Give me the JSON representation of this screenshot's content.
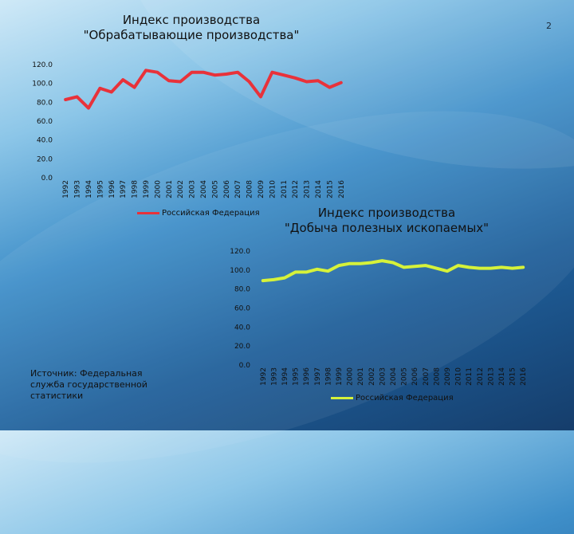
{
  "slide": {
    "number": "2"
  },
  "source": {
    "text": "Источник: Федеральная служба государственной статистики"
  },
  "colors": {
    "manufacturing": "#e8323a",
    "mining": "#d6f23a"
  },
  "chart_data": [
    {
      "type": "line",
      "title": "Индекс производства \"Обрабатывающие производства\"",
      "title_line1": "Индекс производства",
      "title_line2": "\"Обрабатывающие производства\"",
      "x": [
        "1992",
        "1993",
        "1994",
        "1995",
        "1996",
        "1997",
        "1998",
        "1999",
        "2000",
        "2001",
        "2002",
        "2003",
        "2004",
        "2005",
        "2006",
        "2007",
        "2008",
        "2009",
        "2010",
        "2011",
        "2012",
        "2013",
        "2014",
        "2015",
        "2016"
      ],
      "series": [
        {
          "name": "Российская Федерация",
          "values": [
            82,
            85,
            73,
            94,
            90,
            103,
            95,
            113,
            111,
            102,
            101,
            111,
            111,
            108,
            109,
            111,
            101,
            85,
            111,
            108,
            105,
            101,
            102,
            95,
            100
          ]
        }
      ],
      "y_ticks": [
        "0.0",
        "20.0",
        "40.0",
        "60.0",
        "80.0",
        "100.0",
        "120.0"
      ],
      "ylim": [
        0,
        120
      ],
      "legend_position": "bottom"
    },
    {
      "type": "line",
      "title": "Индекс производства \"Добыча полезных ископаемых\"",
      "title_line1": "Индекс производства",
      "title_line2": "\"Добыча полезных ископаемых\"",
      "x": [
        "1992",
        "1993",
        "1994",
        "1995",
        "1996",
        "1997",
        "1998",
        "1999",
        "2000",
        "2001",
        "2002",
        "2003",
        "2004",
        "2005",
        "2006",
        "2007",
        "2008",
        "2009",
        "2010",
        "2011",
        "2012",
        "2013",
        "2014",
        "2015",
        "2016"
      ],
      "series": [
        {
          "name": "Российская Федерация",
          "values": [
            88,
            89,
            91,
            97,
            97,
            100,
            98,
            104,
            106,
            106,
            107,
            109,
            107,
            102,
            103,
            104,
            101,
            98,
            104,
            102,
            101,
            101,
            102,
            101,
            102
          ]
        }
      ],
      "y_ticks": [
        "0.0",
        "20.0",
        "40.0",
        "60.0",
        "80.0",
        "100.0",
        "120.0"
      ],
      "ylim": [
        0,
        120
      ],
      "legend_position": "bottom"
    }
  ]
}
